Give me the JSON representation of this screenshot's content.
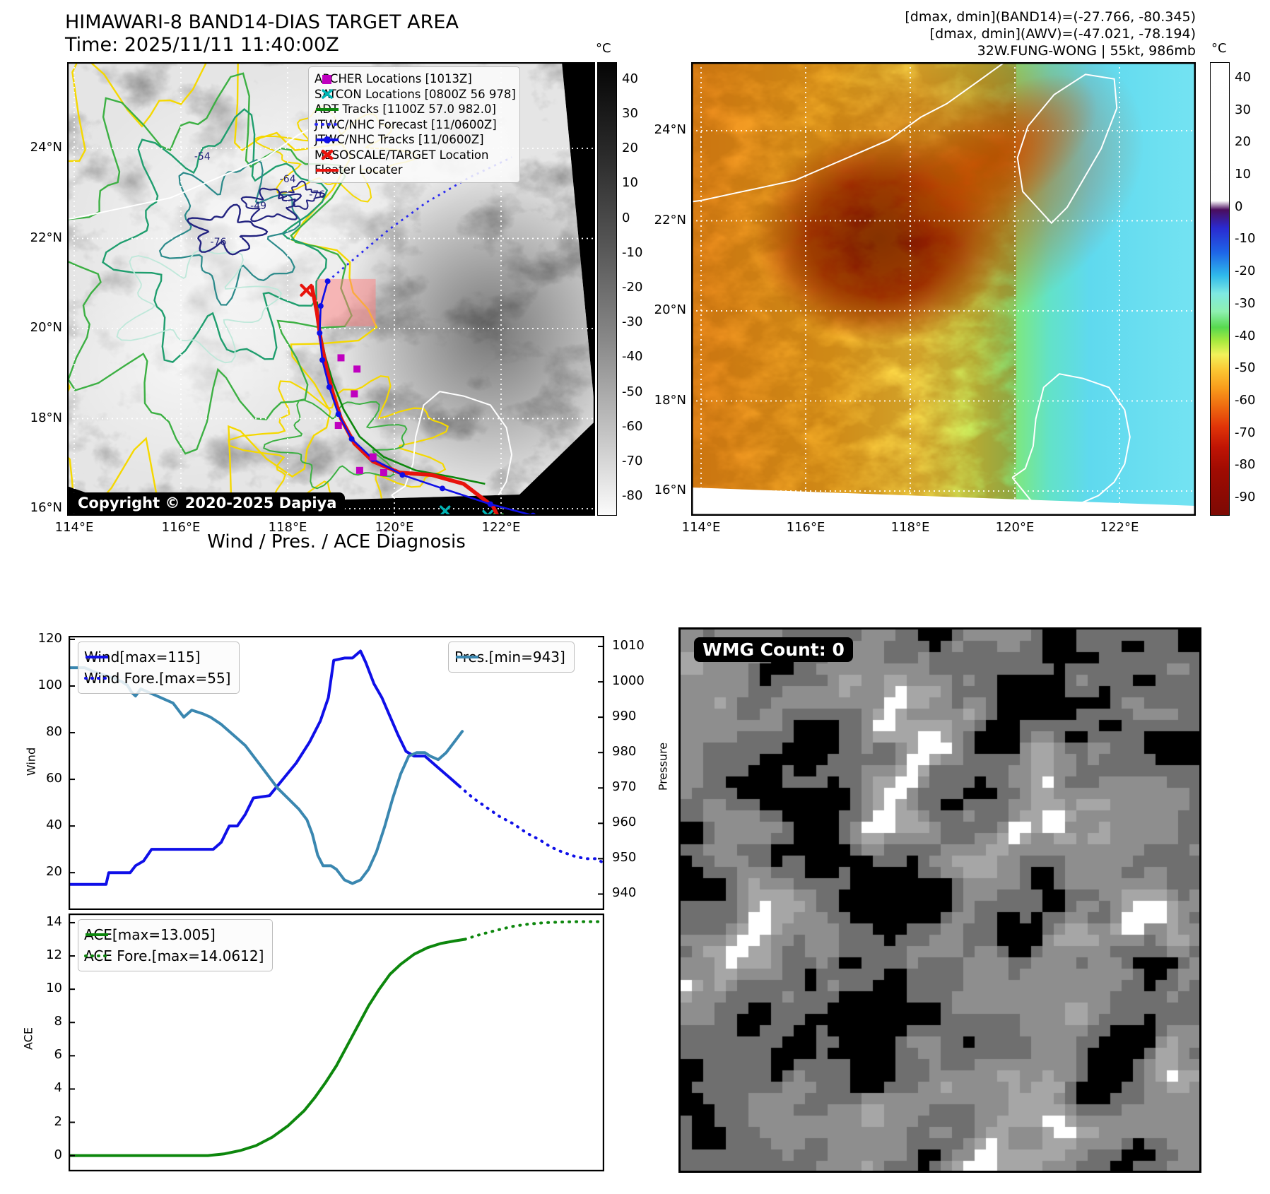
{
  "panel_band14": {
    "title": "HIMAWARI-8 BAND14-DIAS TARGET AREA",
    "time_line": "Time: 2025/11/11 11:40:00Z",
    "copyright": "Copyright © 2020-2025 Dapiya",
    "legend": [
      {
        "label": "ARCHER Locations [1013Z]",
        "swatch": "square",
        "color": "#bf00bf"
      },
      {
        "label": "SATCON Locations [0800Z 56 978]",
        "swatch": "x",
        "color": "#00b5b5"
      },
      {
        "label": "ADT Tracks [1100Z 57.0 982.0]",
        "swatch": "line",
        "color": "#0d870d"
      },
      {
        "label": "JTWC/NHC Forecast [11/0600Z]",
        "swatch": "dotted",
        "color": "#2a2af0"
      },
      {
        "label": "JTWC/NHC Tracks [11/0600Z]",
        "swatch": "line-dot",
        "color": "#0f0fe8"
      },
      {
        "label": "MESOSCALE/TARGET Location",
        "swatch": "bold-x",
        "color": "#e8130c"
      },
      {
        "label": "Floater Locater",
        "swatch": "line",
        "color": "#e8130c"
      }
    ],
    "lon_ticks": [
      {
        "label": "114°E",
        "value": 114
      },
      {
        "label": "116°E",
        "value": 116
      },
      {
        "label": "118°E",
        "value": 118
      },
      {
        "label": "120°E",
        "value": 120
      },
      {
        "label": "122°E",
        "value": 122
      }
    ],
    "lat_ticks": [
      {
        "label": "24°N",
        "value": 24
      },
      {
        "label": "22°N",
        "value": 22
      },
      {
        "label": "20°N",
        "value": 20
      },
      {
        "label": "18°N",
        "value": 18
      },
      {
        "label": "16°N",
        "value": 16
      }
    ],
    "colorbar": {
      "unit": "°C",
      "range": [
        45,
        -85
      ],
      "ticks": [
        40,
        30,
        20,
        10,
        0,
        -10,
        -20,
        -30,
        -40,
        -50,
        -60,
        -70,
        -80
      ]
    },
    "contour_labels": [
      {
        "text": "-54",
        "lon": 116.25,
        "lat": 23.75
      },
      {
        "text": "-64",
        "lon": 117.85,
        "lat": 23.25
      },
      {
        "text": "-76",
        "lon": 118.4,
        "lat": 22.9
      },
      {
        "text": "-49",
        "lon": 117.3,
        "lat": 22.65
      },
      {
        "text": "-76",
        "lon": 116.55,
        "lat": 21.85
      }
    ],
    "target_box": {
      "lon_min": 118.55,
      "lon_max": 119.65,
      "lat_min": 20.05,
      "lat_max": 21.1
    },
    "tracks": {
      "floater": [
        [
          118.45,
          20.95
        ],
        [
          118.55,
          20.35
        ],
        [
          118.62,
          19.75
        ],
        [
          118.72,
          19.15
        ],
        [
          118.85,
          18.55
        ],
        [
          119.0,
          18.0
        ],
        [
          119.25,
          17.45
        ],
        [
          119.6,
          17.05
        ],
        [
          120.1,
          16.8
        ],
        [
          120.7,
          16.75
        ],
        [
          121.3,
          16.55
        ],
        [
          121.85,
          16.05
        ],
        [
          122.05,
          15.55
        ]
      ],
      "jtwc": [
        [
          118.75,
          21.05
        ],
        [
          118.62,
          20.5
        ],
        [
          118.6,
          19.9
        ],
        [
          118.65,
          19.3
        ],
        [
          118.78,
          18.7
        ],
        [
          118.95,
          18.1
        ],
        [
          119.2,
          17.55
        ],
        [
          119.6,
          17.1
        ],
        [
          120.15,
          16.75
        ],
        [
          120.9,
          16.45
        ],
        [
          121.8,
          16.1
        ],
        [
          122.6,
          15.85
        ]
      ],
      "jtwc_forecast": [
        [
          118.75,
          21.05
        ],
        [
          119.3,
          21.6
        ],
        [
          119.9,
          22.2
        ],
        [
          120.6,
          22.8
        ],
        [
          121.4,
          23.35
        ],
        [
          122.2,
          23.8
        ]
      ],
      "adt": [
        [
          118.55,
          20.6
        ],
        [
          118.6,
          20.0
        ],
        [
          118.7,
          19.4
        ],
        [
          118.85,
          18.8
        ],
        [
          119.05,
          18.2
        ],
        [
          119.35,
          17.6
        ],
        [
          119.8,
          17.15
        ],
        [
          120.4,
          16.85
        ],
        [
          121.1,
          16.7
        ],
        [
          121.7,
          16.55
        ]
      ]
    },
    "markers": {
      "archer_squares": [
        [
          119.0,
          19.35
        ],
        [
          119.3,
          19.1
        ],
        [
          119.25,
          18.55
        ],
        [
          118.95,
          17.85
        ],
        [
          119.6,
          17.15
        ],
        [
          119.35,
          16.85
        ],
        [
          119.8,
          16.8
        ]
      ],
      "satcon_x": [
        [
          121.75,
          15.85
        ],
        [
          122.3,
          15.7
        ],
        [
          120.95,
          15.95
        ]
      ],
      "adt_x": [
        [
          121.95,
          15.78
        ],
        [
          122.4,
          15.62
        ]
      ],
      "mesoscale_x": [
        [
          118.35,
          20.85
        ]
      ]
    }
  },
  "panel_awv": {
    "header_lines": [
      "[dmax, dmin](BAND14)=(-27.766, -80.345)",
      "[dmax, dmin](AWV)=(-47.021, -78.194)",
      "32W.FUNG-WONG | 55kt, 986mb"
    ],
    "lon_ticks": [
      {
        "label": "114°E",
        "value": 114
      },
      {
        "label": "116°E",
        "value": 116
      },
      {
        "label": "118°E",
        "value": 118
      },
      {
        "label": "120°E",
        "value": 120
      },
      {
        "label": "122°E",
        "value": 122
      }
    ],
    "lat_ticks": [
      {
        "label": "24°N",
        "value": 24
      },
      {
        "label": "22°N",
        "value": 22
      },
      {
        "label": "20°N",
        "value": 20
      },
      {
        "label": "18°N",
        "value": 18
      },
      {
        "label": "16°N",
        "value": 16
      }
    ],
    "colorbar": {
      "unit": "°C",
      "range": [
        45,
        -95
      ],
      "ticks": [
        40,
        30,
        20,
        10,
        0,
        -10,
        -20,
        -30,
        -40,
        -50,
        -60,
        -70,
        -80,
        -90
      ]
    }
  },
  "panel_diagnosis": {
    "title": "Wind / Pres. / ACE Diagnosis",
    "ylabel_wind": "Wind",
    "ylabel_pressure": "Pressure",
    "ylabel_ace": "ACE"
  },
  "chart_data": [
    {
      "type": "line",
      "title": "Wind / Pres. / ACE Diagnosis",
      "ylabel": "Wind",
      "y2label": "Pressure",
      "ylim": [
        4,
        121.5
      ],
      "y2lim": [
        935.5,
        1013
      ],
      "xlim": [
        0,
        1
      ],
      "yticks": [
        20,
        40,
        60,
        80,
        100,
        120
      ],
      "y2ticks": [
        940,
        950,
        960,
        970,
        980,
        990,
        1000,
        1010
      ],
      "grid": false,
      "legend_position": "upper left / upper right",
      "series": [
        {
          "name": "Wind[max=115]",
          "axis": "left",
          "style": "solid",
          "color": "#0f0fe8",
          "width": 4,
          "points": [
            [
              0.0,
              15
            ],
            [
              0.045,
              15
            ],
            [
              0.07,
              15
            ],
            [
              0.075,
              20
            ],
            [
              0.115,
              20
            ],
            [
              0.125,
              23
            ],
            [
              0.14,
              25
            ],
            [
              0.155,
              30
            ],
            [
              0.27,
              30
            ],
            [
              0.285,
              33
            ],
            [
              0.3,
              40
            ],
            [
              0.315,
              40
            ],
            [
              0.33,
              45
            ],
            [
              0.345,
              52
            ],
            [
              0.375,
              53
            ],
            [
              0.4,
              60
            ],
            [
              0.425,
              67
            ],
            [
              0.45,
              76
            ],
            [
              0.47,
              85
            ],
            [
              0.485,
              95
            ],
            [
              0.495,
              111
            ],
            [
              0.515,
              112
            ],
            [
              0.53,
              112
            ],
            [
              0.545,
              115
            ],
            [
              0.555,
              110
            ],
            [
              0.57,
              101
            ],
            [
              0.585,
              95
            ],
            [
              0.6,
              87
            ],
            [
              0.615,
              79
            ],
            [
              0.63,
              72
            ],
            [
              0.645,
              70
            ],
            [
              0.665,
              70
            ],
            [
              0.675,
              68
            ],
            [
              0.69,
              65
            ],
            [
              0.71,
              61
            ],
            [
              0.73,
              57
            ]
          ]
        },
        {
          "name": "Wind Fore.[max=55]",
          "axis": "left",
          "style": "dotted",
          "color": "#0f0fe8",
          "width": 4,
          "points": [
            [
              0.73,
              57
            ],
            [
              0.755,
              52
            ],
            [
              0.78,
              48
            ],
            [
              0.805,
              44
            ],
            [
              0.83,
              41
            ],
            [
              0.855,
              37
            ],
            [
              0.88,
              34
            ],
            [
              0.9,
              31
            ],
            [
              0.92,
              29
            ],
            [
              0.945,
              27
            ],
            [
              0.965,
              26
            ],
            [
              0.985,
              26
            ],
            [
              1.0,
              24
            ]
          ]
        },
        {
          "name": "Pres.[min=943]",
          "axis": "right",
          "style": "solid",
          "color": "#3a87b0",
          "width": 4,
          "points": [
            [
              0.0,
              1004
            ],
            [
              0.03,
              1004
            ],
            [
              0.045,
              1003
            ],
            [
              0.065,
              1002
            ],
            [
              0.085,
              1001
            ],
            [
              0.1,
              1000
            ],
            [
              0.11,
              999
            ],
            [
              0.118,
              997
            ],
            [
              0.125,
              996
            ],
            [
              0.135,
              998
            ],
            [
              0.15,
              997
            ],
            [
              0.165,
              996
            ],
            [
              0.18,
              995
            ],
            [
              0.195,
              994
            ],
            [
              0.205,
              992
            ],
            [
              0.215,
              990
            ],
            [
              0.23,
              992
            ],
            [
              0.25,
              991
            ],
            [
              0.265,
              990
            ],
            [
              0.285,
              988
            ],
            [
              0.3,
              986
            ],
            [
              0.315,
              984
            ],
            [
              0.33,
              982
            ],
            [
              0.345,
              979
            ],
            [
              0.36,
              976
            ],
            [
              0.375,
              973
            ],
            [
              0.39,
              970
            ],
            [
              0.41,
              967
            ],
            [
              0.43,
              964
            ],
            [
              0.445,
              961
            ],
            [
              0.455,
              957
            ],
            [
              0.465,
              951
            ],
            [
              0.475,
              948
            ],
            [
              0.49,
              948
            ],
            [
              0.5,
              947
            ],
            [
              0.515,
              944
            ],
            [
              0.53,
              943
            ],
            [
              0.545,
              944
            ],
            [
              0.56,
              947
            ],
            [
              0.575,
              952
            ],
            [
              0.59,
              959
            ],
            [
              0.605,
              967
            ],
            [
              0.62,
              974
            ],
            [
              0.635,
              979
            ],
            [
              0.65,
              980
            ],
            [
              0.665,
              980
            ],
            [
              0.675,
              979
            ],
            [
              0.69,
              978
            ],
            [
              0.705,
              980
            ],
            [
              0.72,
              983
            ],
            [
              0.735,
              986
            ]
          ]
        }
      ]
    },
    {
      "type": "line",
      "title": "",
      "ylabel": "ACE",
      "ylim": [
        -0.95,
        14.55
      ],
      "xlim": [
        0,
        1
      ],
      "yticks": [
        0,
        2,
        4,
        6,
        8,
        10,
        12,
        14
      ],
      "grid": false,
      "legend_position": "upper left",
      "series": [
        {
          "name": "ACE[max=13.005]",
          "axis": "left",
          "style": "solid",
          "color": "#0d870d",
          "width": 4,
          "points": [
            [
              0.0,
              0
            ],
            [
              0.26,
              0
            ],
            [
              0.29,
              0.1
            ],
            [
              0.32,
              0.3
            ],
            [
              0.35,
              0.6
            ],
            [
              0.38,
              1.1
            ],
            [
              0.41,
              1.8
            ],
            [
              0.44,
              2.7
            ],
            [
              0.46,
              3.5
            ],
            [
              0.48,
              4.4
            ],
            [
              0.5,
              5.4
            ],
            [
              0.52,
              6.6
            ],
            [
              0.54,
              7.8
            ],
            [
              0.56,
              9.0
            ],
            [
              0.58,
              10.0
            ],
            [
              0.6,
              10.9
            ],
            [
              0.62,
              11.5
            ],
            [
              0.645,
              12.1
            ],
            [
              0.67,
              12.5
            ],
            [
              0.695,
              12.75
            ],
            [
              0.72,
              12.9
            ],
            [
              0.74,
              13.0
            ]
          ]
        },
        {
          "name": "ACE Fore.[max=14.0612]",
          "axis": "left",
          "style": "dotted",
          "color": "#0d870d",
          "width": 4,
          "points": [
            [
              0.74,
              13.0
            ],
            [
              0.77,
              13.3
            ],
            [
              0.8,
              13.55
            ],
            [
              0.83,
              13.78
            ],
            [
              0.86,
              13.92
            ],
            [
              0.89,
              14.0
            ],
            [
              0.92,
              14.04
            ],
            [
              0.95,
              14.06
            ],
            [
              1.0,
              14.06
            ]
          ]
        }
      ]
    }
  ],
  "panel_wmg": {
    "badge": "WMG Count: 0"
  },
  "coastlines": {
    "china": [
      [
        112.2,
        22.1
      ],
      [
        113.0,
        22.3
      ],
      [
        114.0,
        22.45
      ],
      [
        114.6,
        22.6
      ],
      [
        115.2,
        22.75
      ],
      [
        115.8,
        22.9
      ],
      [
        116.4,
        23.2
      ],
      [
        117.0,
        23.5
      ],
      [
        117.6,
        23.8
      ],
      [
        118.2,
        24.3
      ],
      [
        118.7,
        24.6
      ],
      [
        119.3,
        25.1
      ],
      [
        119.9,
        25.6
      ]
    ],
    "luzon": [
      [
        119.95,
        16.3
      ],
      [
        120.2,
        16.5
      ],
      [
        120.35,
        17.0
      ],
      [
        120.4,
        17.6
      ],
      [
        120.55,
        18.3
      ],
      [
        120.85,
        18.6
      ],
      [
        121.3,
        18.5
      ],
      [
        121.8,
        18.3
      ],
      [
        122.1,
        17.8
      ],
      [
        122.2,
        17.2
      ],
      [
        122.1,
        16.6
      ],
      [
        121.9,
        16.2
      ],
      [
        121.6,
        15.9
      ],
      [
        121.2,
        15.7
      ],
      [
        120.7,
        15.6
      ],
      [
        120.3,
        15.8
      ],
      [
        119.95,
        16.3
      ]
    ],
    "taiwan": [
      [
        120.7,
        21.95
      ],
      [
        120.15,
        22.65
      ],
      [
        120.05,
        23.4
      ],
      [
        120.25,
        24.1
      ],
      [
        120.75,
        24.8
      ],
      [
        121.35,
        25.25
      ],
      [
        121.9,
        25.15
      ],
      [
        121.95,
        24.5
      ],
      [
        121.65,
        23.6
      ],
      [
        121.3,
        22.9
      ],
      [
        121.0,
        22.3
      ],
      [
        120.7,
        21.95
      ]
    ]
  }
}
